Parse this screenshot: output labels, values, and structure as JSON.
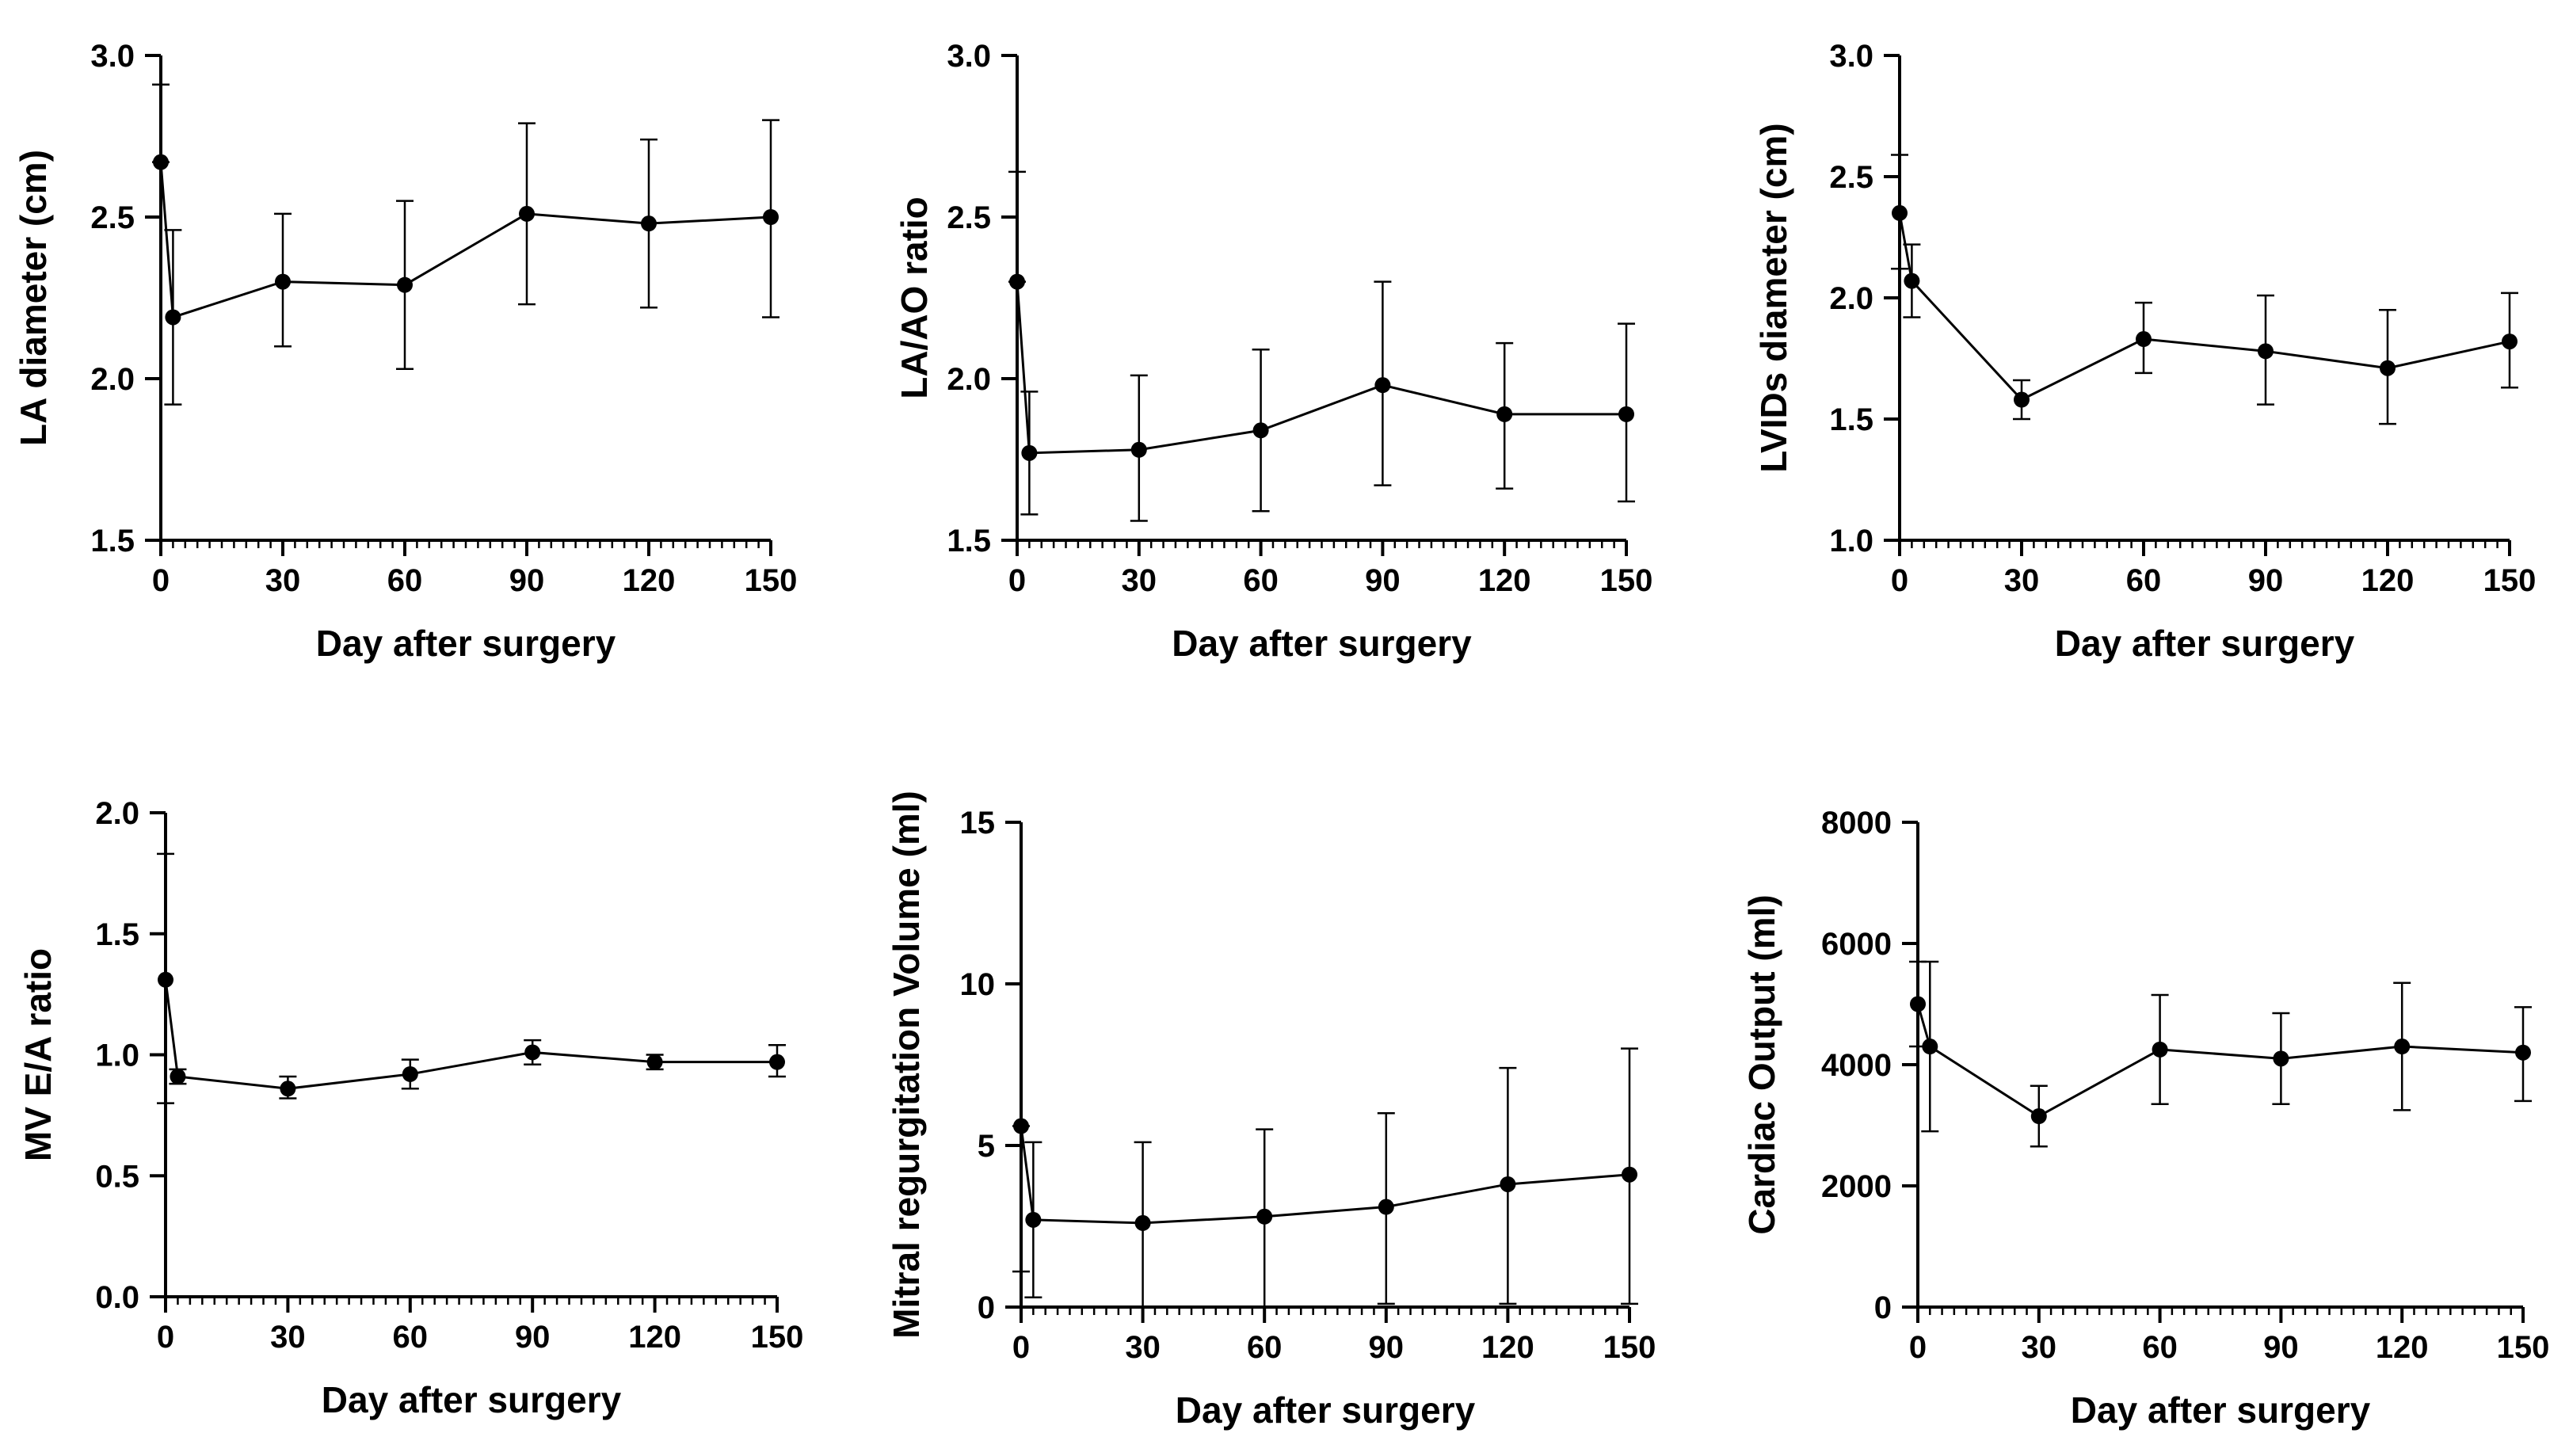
{
  "chart_data": [
    {
      "type": "line",
      "xlabel": "Day after surgery",
      "ylabel": "LA  diameter (cm)",
      "xlim": [
        0,
        150
      ],
      "ylim": [
        1.5,
        3.0
      ],
      "xticks": [
        0,
        30,
        60,
        90,
        120,
        150
      ],
      "yticks": [
        "1.5",
        "2.0",
        "2.5",
        "3.0"
      ],
      "x": [
        0,
        3,
        30,
        60,
        90,
        120,
        150
      ],
      "values": [
        2.67,
        2.19,
        2.3,
        2.29,
        2.51,
        2.48,
        2.5
      ],
      "err_low": [
        2.67,
        1.92,
        2.1,
        2.03,
        2.23,
        2.22,
        2.19
      ],
      "err_high": [
        2.91,
        2.46,
        2.51,
        2.55,
        2.79,
        2.74,
        2.8
      ]
    },
    {
      "type": "line",
      "xlabel": "Day after surgery",
      "ylabel": "LA/AO ratio",
      "xlim": [
        0,
        150
      ],
      "ylim": [
        1.5,
        3.0
      ],
      "xticks": [
        0,
        30,
        60,
        90,
        120,
        150
      ],
      "yticks": [
        "1.5",
        "2.0",
        "2.5",
        "3.0"
      ],
      "x": [
        0,
        3,
        30,
        60,
        90,
        120,
        150
      ],
      "values": [
        2.3,
        1.77,
        1.78,
        1.84,
        1.98,
        1.89,
        1.89
      ],
      "err_low": [
        2.3,
        1.58,
        1.56,
        1.59,
        1.67,
        1.66,
        1.62
      ],
      "err_high": [
        2.64,
        1.96,
        2.01,
        2.09,
        2.3,
        2.11,
        2.17
      ]
    },
    {
      "type": "line",
      "xlabel": "Day after surgery",
      "ylabel": "LVIDs  diameter (cm)",
      "xlim": [
        0,
        150
      ],
      "ylim": [
        1.0,
        3.0
      ],
      "xticks": [
        0,
        30,
        60,
        90,
        120,
        150
      ],
      "yticks": [
        "1.0",
        "1.5",
        "2.0",
        "2.5",
        "3.0"
      ],
      "x": [
        0,
        3,
        30,
        60,
        90,
        120,
        150
      ],
      "values": [
        2.35,
        2.07,
        1.58,
        1.83,
        1.78,
        1.71,
        1.82
      ],
      "err_low": [
        2.12,
        1.92,
        1.5,
        1.69,
        1.56,
        1.48,
        1.63
      ],
      "err_high": [
        2.59,
        2.22,
        1.66,
        1.98,
        2.01,
        1.95,
        2.02
      ]
    },
    {
      "type": "line",
      "xlabel": "Day after surgery",
      "ylabel": "MV E/A ratio",
      "xlim": [
        0,
        150
      ],
      "ylim": [
        0.0,
        2.0
      ],
      "xticks": [
        0,
        30,
        60,
        90,
        120,
        150
      ],
      "yticks": [
        "0.0",
        "0.5",
        "1.0",
        "1.5",
        "2.0"
      ],
      "x": [
        0,
        3,
        30,
        60,
        90,
        120,
        150
      ],
      "values": [
        1.31,
        0.91,
        0.86,
        0.92,
        1.01,
        0.97,
        0.97
      ],
      "err_low": [
        0.8,
        0.88,
        0.82,
        0.86,
        0.96,
        0.94,
        0.91
      ],
      "err_high": [
        1.83,
        0.94,
        0.91,
        0.98,
        1.06,
        1.0,
        1.04
      ]
    },
    {
      "type": "line",
      "xlabel": "Day after surgery",
      "ylabel": "Mitral regurgitation Volume (ml)",
      "xlim": [
        0,
        150
      ],
      "ylim": [
        0,
        15
      ],
      "xticks": [
        0,
        30,
        60,
        90,
        120,
        150
      ],
      "yticks": [
        "0",
        "5",
        "10",
        "15"
      ],
      "x": [
        0,
        3,
        30,
        60,
        90,
        120,
        150
      ],
      "values": [
        5.6,
        2.7,
        2.6,
        2.8,
        3.1,
        3.8,
        4.1
      ],
      "err_low": [
        1.1,
        0.3,
        0.0,
        0.0,
        0.1,
        0.1,
        0.1
      ],
      "err_high": [
        5.6,
        5.1,
        5.1,
        5.5,
        6.0,
        7.4,
        8.0
      ]
    },
    {
      "type": "line",
      "xlabel": "Day after surgery",
      "ylabel": "Cardiac Output (ml)",
      "xlim": [
        0,
        150
      ],
      "ylim": [
        0,
        8000
      ],
      "xticks": [
        0,
        30,
        60,
        90,
        120,
        150
      ],
      "yticks": [
        "0",
        "2000",
        "4000",
        "6000",
        "8000"
      ],
      "x": [
        0,
        3,
        30,
        60,
        90,
        120,
        150
      ],
      "values": [
        5000,
        4300,
        3150,
        4250,
        4100,
        4300,
        4200
      ],
      "err_low": [
        4300,
        2900,
        2650,
        3350,
        3350,
        3250,
        3400
      ],
      "err_high": [
        5700,
        5700,
        3650,
        5150,
        4850,
        5350,
        4950
      ]
    }
  ]
}
